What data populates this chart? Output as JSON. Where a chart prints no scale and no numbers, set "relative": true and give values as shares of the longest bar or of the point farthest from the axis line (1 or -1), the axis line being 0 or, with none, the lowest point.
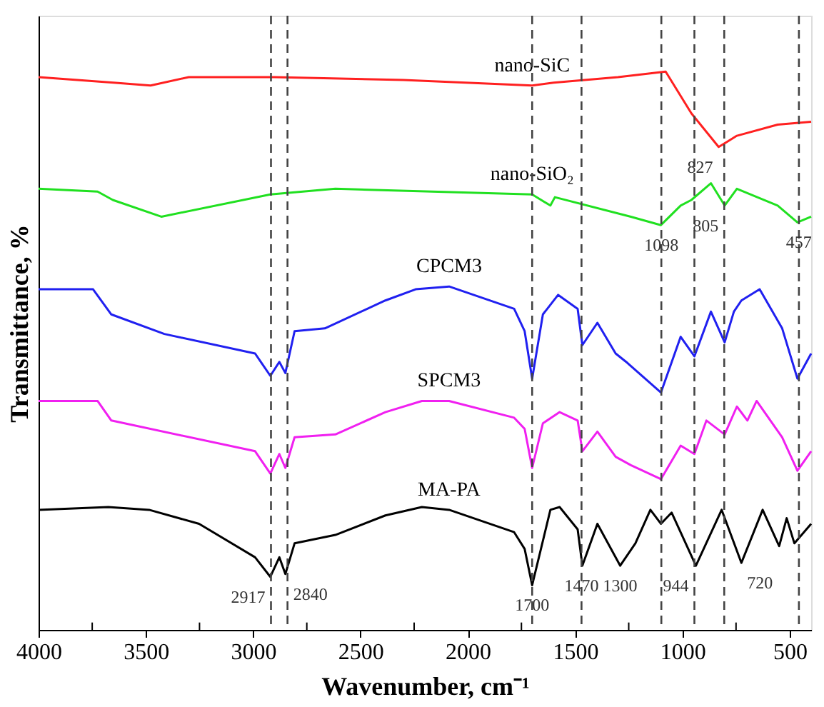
{
  "chart_data": {
    "type": "line",
    "xlabel": "Wavenumber, cm⁻¹",
    "ylabel": "Transmittance, %",
    "relative": true,
    "tick_labels": "x",
    "grid": false,
    "marker": "none",
    "line_style": "solid",
    "xlim": [
      4000,
      400
    ],
    "xticks": [
      4000,
      {
        "value": 3750,
        "label": null
      },
      3500,
      {
        "value": 3250,
        "label": null
      },
      3000,
      {
        "value": 2750,
        "label": null
      },
      2500,
      {
        "value": 2250,
        "label": null
      },
      2000,
      {
        "value": 1750,
        "label": null
      },
      1500,
      {
        "value": 1250,
        "label": null
      },
      1000,
      {
        "value": 750,
        "label": null
      },
      500
    ],
    "series": [
      {
        "name": "nano-SiC",
        "color": "#ff2020",
        "x": [
          4000,
          3650,
          3478,
          3300,
          2900,
          2300,
          1700,
          1600,
          1300,
          1078,
          958,
          831,
          746,
          556,
          400
        ],
        "values": [
          0.99,
          0.98,
          0.975,
          0.99,
          0.99,
          0.985,
          0.975,
          0.98,
          0.99,
          1.0,
          0.925,
          0.865,
          0.885,
          0.905,
          0.91
        ]
      },
      {
        "name": "nano-SiO₂",
        "color": "#20e020",
        "x": [
          4000,
          3725,
          3654,
          3428,
          2920,
          2617,
          1700,
          1615,
          1594,
          1240,
          1100,
          1008,
          958,
          867,
          803,
          746,
          556,
          464,
          400
        ],
        "values": [
          0.79,
          0.785,
          0.77,
          0.74,
          0.78,
          0.79,
          0.78,
          0.76,
          0.775,
          0.74,
          0.725,
          0.76,
          0.77,
          0.8,
          0.76,
          0.79,
          0.76,
          0.73,
          0.74
        ]
      },
      {
        "name": "CPCM3",
        "color": "#2020f0",
        "x": [
          4000,
          3746,
          3661,
          3414,
          2991,
          2920,
          2878,
          2850,
          2807,
          2666,
          2384,
          2243,
          2087,
          1784,
          1735,
          1700,
          1650,
          1579,
          1488,
          1466,
          1396,
          1311,
          1262,
          1100,
          1008,
          944,
          867,
          803,
          760,
          725,
          640,
          535,
          464,
          400
        ],
        "values": [
          0.61,
          0.61,
          0.565,
          0.53,
          0.495,
          0.455,
          0.48,
          0.46,
          0.535,
          0.54,
          0.59,
          0.61,
          0.615,
          0.575,
          0.535,
          0.45,
          0.565,
          0.6,
          0.575,
          0.51,
          0.55,
          0.495,
          0.48,
          0.425,
          0.525,
          0.49,
          0.57,
          0.515,
          0.57,
          0.59,
          0.61,
          0.54,
          0.45,
          0.495
        ]
      },
      {
        "name": "SPCM3",
        "color": "#f020f0",
        "x": [
          4000,
          3725,
          3661,
          2991,
          2920,
          2878,
          2850,
          2807,
          2617,
          2384,
          2214,
          2087,
          1784,
          1735,
          1700,
          1650,
          1572,
          1488,
          1466,
          1396,
          1311,
          1240,
          1100,
          1008,
          944,
          888,
          803,
          746,
          697,
          654,
          535,
          464,
          400
        ],
        "values": [
          0.41,
          0.41,
          0.375,
          0.32,
          0.28,
          0.315,
          0.29,
          0.345,
          0.35,
          0.39,
          0.41,
          0.41,
          0.38,
          0.36,
          0.29,
          0.37,
          0.39,
          0.375,
          0.32,
          0.355,
          0.31,
          0.295,
          0.27,
          0.33,
          0.315,
          0.375,
          0.35,
          0.4,
          0.375,
          0.41,
          0.345,
          0.285,
          0.32
        ]
      },
      {
        "name": "MA-PA",
        "color": "#000000",
        "x": [
          4000,
          3675,
          3485,
          3252,
          2991,
          2920,
          2878,
          2850,
          2807,
          2617,
          2384,
          2214,
          2087,
          1784,
          1735,
          1700,
          1615,
          1572,
          1488,
          1466,
          1396,
          1290,
          1219,
          1149,
          1100,
          1050,
          937,
          817,
          725,
          626,
          549,
          514,
          478,
          400
        ],
        "values": [
          0.215,
          0.22,
          0.215,
          0.19,
          0.13,
          0.095,
          0.13,
          0.1,
          0.155,
          0.17,
          0.205,
          0.22,
          0.215,
          0.175,
          0.145,
          0.08,
          0.215,
          0.22,
          0.18,
          0.115,
          0.19,
          0.115,
          0.155,
          0.215,
          0.19,
          0.21,
          0.115,
          0.215,
          0.12,
          0.215,
          0.15,
          0.2,
          0.155,
          0.19
        ]
      }
    ],
    "ref_lines": [
      {
        "axis": "x",
        "value": 2917,
        "label": null,
        "color": "#444444",
        "line_style": "dashed"
      },
      {
        "axis": "x",
        "value": 2840,
        "label": null,
        "color": "#444444",
        "line_style": "dashed"
      },
      {
        "axis": "x",
        "value": 1700,
        "label": null,
        "color": "#444444",
        "line_style": "dashed"
      },
      {
        "axis": "x",
        "value": 1470,
        "label": null,
        "color": "#444444",
        "line_style": "dashed"
      },
      {
        "axis": "x",
        "value": 1098,
        "label": null,
        "color": "#444444",
        "line_style": "dashed"
      },
      {
        "axis": "x",
        "value": 944,
        "label": null,
        "color": "#444444",
        "line_style": "dashed"
      },
      {
        "axis": "x",
        "value": 805,
        "label": null,
        "color": "#444444",
        "line_style": "dashed"
      },
      {
        "axis": "x",
        "value": 457,
        "label": null,
        "color": "#444444",
        "line_style": "dashed"
      }
    ],
    "annotations": [
      {
        "text": "2917",
        "x": 2917,
        "y": 0.095
      },
      {
        "text": "2840",
        "x": 2840,
        "y": 0.1
      },
      {
        "text": "1700",
        "x": 1700,
        "y": 0.08
      },
      {
        "text": "1470",
        "x": 1470,
        "y": 0.115
      },
      {
        "text": "1300",
        "x": 1290,
        "y": 0.115
      },
      {
        "text": "944",
        "x": 944,
        "y": 0.115
      },
      {
        "text": "720",
        "x": 725,
        "y": 0.12
      },
      {
        "text": "827",
        "x": 831,
        "y": 0.865
      },
      {
        "text": "1098",
        "x": 1098,
        "y": 0.725
      },
      {
        "text": "805",
        "x": 805,
        "y": 0.76
      },
      {
        "text": "457",
        "x": 457,
        "y": 0.73
      }
    ]
  }
}
